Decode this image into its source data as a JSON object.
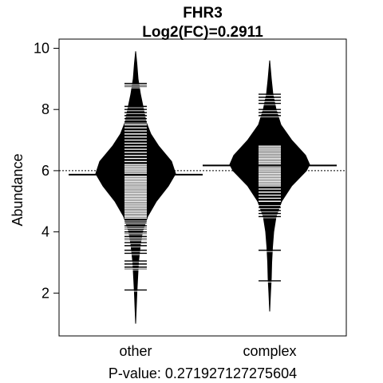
{
  "chart_data": {
    "type": "beanplot",
    "title": "FHR3",
    "subtitle": "Log2(FC)=0.2911",
    "xlabel": "P-value: 0.271927127275604",
    "ylabel": "Abundance",
    "ylim": [
      0.6,
      10.3
    ],
    "yticks": [
      "2",
      "4",
      "6",
      "8",
      "10"
    ],
    "overall_mean": 6.0,
    "categories": [
      "other",
      "complex"
    ],
    "series": [
      {
        "category": "other",
        "mean": 5.87,
        "range": [
          1.0,
          9.9
        ],
        "density": [
          [
            1.0,
            0.0
          ],
          [
            2.0,
            0.03
          ],
          [
            3.0,
            0.07
          ],
          [
            3.6,
            0.12
          ],
          [
            4.0,
            0.17
          ],
          [
            4.5,
            0.3
          ],
          [
            5.0,
            0.52
          ],
          [
            5.5,
            0.82
          ],
          [
            5.9,
            1.0
          ],
          [
            6.3,
            0.9
          ],
          [
            6.8,
            0.58
          ],
          [
            7.2,
            0.38
          ],
          [
            7.6,
            0.26
          ],
          [
            8.0,
            0.2
          ],
          [
            8.5,
            0.12
          ],
          [
            9.0,
            0.06
          ],
          [
            9.5,
            0.03
          ],
          [
            9.9,
            0.0
          ]
        ],
        "observations": [
          2.1,
          2.8,
          2.85,
          2.95,
          3.05,
          3.3,
          3.4,
          3.55,
          3.65,
          3.75,
          3.8,
          3.85,
          3.95,
          4.0,
          4.1,
          4.15,
          4.2,
          4.3,
          4.35,
          4.4,
          4.45,
          4.5,
          4.55,
          4.6,
          4.65,
          4.7,
          4.75,
          4.8,
          4.85,
          4.9,
          4.95,
          5.0,
          5.05,
          5.1,
          5.15,
          5.2,
          5.25,
          5.3,
          5.35,
          5.4,
          5.45,
          5.5,
          5.55,
          5.6,
          5.65,
          5.7,
          5.75,
          5.8,
          5.85,
          5.9,
          5.95,
          6.0,
          6.05,
          6.1,
          6.15,
          6.2,
          6.3,
          6.4,
          6.5,
          6.6,
          6.7,
          6.8,
          6.9,
          7.0,
          7.1,
          7.2,
          7.3,
          7.4,
          7.5,
          7.6,
          7.7,
          7.8,
          7.9,
          8.0,
          8.1,
          8.75,
          8.8,
          8.85
        ]
      },
      {
        "category": "complex",
        "mean": 6.17,
        "range": [
          1.4,
          9.6
        ],
        "density": [
          [
            1.4,
            0.0
          ],
          [
            2.0,
            0.02
          ],
          [
            2.5,
            0.04
          ],
          [
            3.0,
            0.05
          ],
          [
            3.5,
            0.07
          ],
          [
            4.0,
            0.1
          ],
          [
            4.5,
            0.16
          ],
          [
            5.0,
            0.3
          ],
          [
            5.5,
            0.55
          ],
          [
            6.0,
            0.92
          ],
          [
            6.2,
            1.0
          ],
          [
            6.5,
            0.9
          ],
          [
            7.0,
            0.55
          ],
          [
            7.5,
            0.28
          ],
          [
            8.0,
            0.16
          ],
          [
            8.5,
            0.08
          ],
          [
            9.0,
            0.04
          ],
          [
            9.6,
            0.0
          ]
        ],
        "observations": [
          2.4,
          3.4,
          4.5,
          4.6,
          4.7,
          4.8,
          4.9,
          5.0,
          5.1,
          5.2,
          5.3,
          5.4,
          5.5,
          5.55,
          5.6,
          5.65,
          5.7,
          5.75,
          5.8,
          5.85,
          5.9,
          5.95,
          6.0,
          6.05,
          6.1,
          6.15,
          6.2,
          6.25,
          6.3,
          6.35,
          6.4,
          6.45,
          6.5,
          6.55,
          6.6,
          6.65,
          6.7,
          6.75,
          6.8,
          7.8,
          7.9,
          8.0,
          8.2,
          8.3,
          8.4,
          8.5
        ]
      }
    ]
  }
}
